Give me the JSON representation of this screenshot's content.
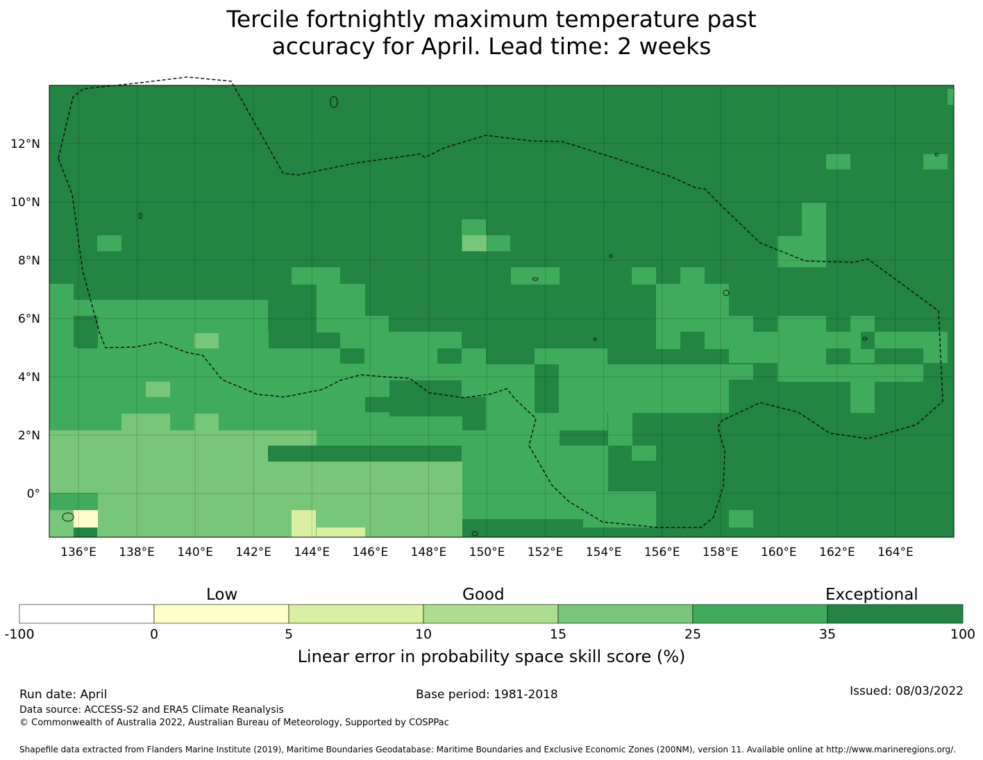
{
  "title_line1": "Tercile fortnightly maximum temperature past",
  "title_line2": "accuracy for April. Lead time: 2 weeks",
  "map": {
    "lon_ticks": [
      "136°E",
      "138°E",
      "140°E",
      "142°E",
      "144°E",
      "146°E",
      "148°E",
      "150°E",
      "152°E",
      "154°E",
      "156°E",
      "158°E",
      "160°E",
      "162°E",
      "164°E"
    ],
    "lat_ticks": [
      "12°N",
      "10°N",
      "8°N",
      "6°N",
      "4°N",
      "2°N",
      "0°"
    ],
    "extent": {
      "lon_min": 135.0,
      "lon_max": 166.0,
      "lat_min": -1.5,
      "lat_max": 14.0
    },
    "grid_size_deg": 0.833,
    "base_category": 6,
    "category_colors": [
      "#ffffff",
      "#ffffcc",
      "#d9f0a3",
      "#addd8e",
      "#78c679",
      "#41ab5d",
      "#238443"
    ],
    "exceptions": {
      "6": [
        [
          135,
          33
        ],
        [
          155,
          59
        ],
        [
          156,
          59
        ],
        [
          157,
          59
        ],
        [
          158,
          59
        ],
        [
          159,
          59
        ],
        [
          160,
          59
        ]
      ]
    }
  },
  "colorbar": {
    "categories": [
      "Low",
      "Good",
      "Exceptional"
    ],
    "ticks": [
      "-100",
      "0",
      "5",
      "10",
      "15",
      "25",
      "35",
      "100"
    ],
    "colors": [
      "#ffffff",
      "#ffffcc",
      "#d9f0a3",
      "#addd8e",
      "#78c679",
      "#41ab5d",
      "#238443"
    ],
    "title": "Linear error in probability space skill score (%)"
  },
  "footer": {
    "run_date": "Run date: April",
    "base_period": "Base period: 1981-2018",
    "issued": "Issued: 08/03/2022",
    "data_source": "Data source: ACCESS-S2 and ERA5 Climate Reanalysis",
    "copyright": "© Commonwealth of Australia 2022, Australian Bureau of Meteorology, Supported by COSPPac",
    "shapefile": "Shapefile data extracted from Flanders Marine Institute (2019), Maritime Boundaries Geodatabase: Maritime Boundaries and Exclusive Economic Zones (200NM), version 11. Available online at http://www.marineregions.org/."
  }
}
